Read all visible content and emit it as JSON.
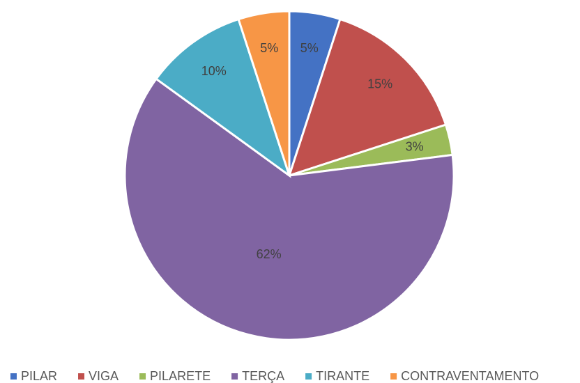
{
  "chart_data": {
    "type": "pie",
    "categories": [
      "PILAR",
      "VIGA",
      "PILARETE",
      "TERÇA",
      "TIRANTE",
      "CONTRAVENTAMENTO"
    ],
    "values": [
      5,
      15,
      3,
      62,
      10,
      5
    ],
    "value_labels": [
      "5%",
      "15%",
      "3%",
      "62%",
      "10%",
      "5%"
    ],
    "colors": [
      "#4472c4",
      "#c0504d",
      "#9bbb59",
      "#8064a2",
      "#4bacc6",
      "#f79646"
    ],
    "legend": "bottom"
  }
}
